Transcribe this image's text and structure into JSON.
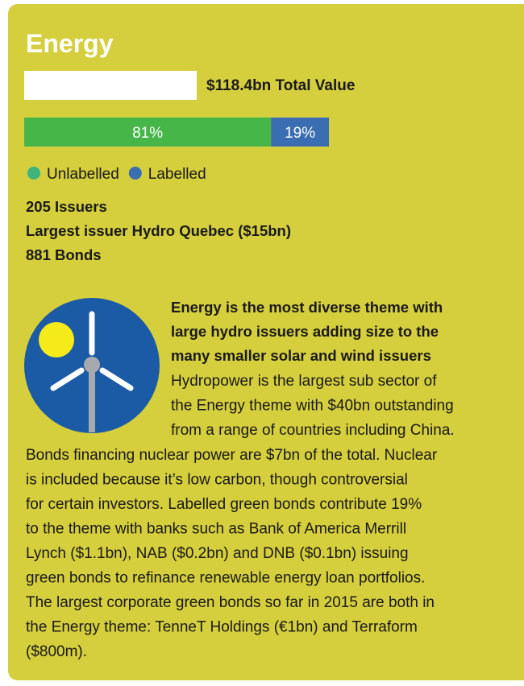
{
  "title": "Energy",
  "total_value": "$118.4bn Total Value",
  "chart_data": {
    "type": "bar",
    "orientation": "horizontal",
    "stacked": true,
    "xlim": [
      0,
      100
    ],
    "series": [
      {
        "name": "Unlabelled",
        "color": "#46b649",
        "legend_color": "#3fb47c",
        "values": [
          81
        ],
        "value_labels": [
          "81%"
        ]
      },
      {
        "name": "Labelled",
        "color": "#3a6db1",
        "legend_color": "#3a6db1",
        "values": [
          19
        ],
        "value_labels": [
          "19%"
        ]
      }
    ]
  },
  "stats": [
    "205 Issuers",
    "Largest issuer Hydro Quebec ($15bn)",
    "881 Bonds"
  ],
  "highlight": {
    "heading_lines": [
      "Energy is the most diverse theme with",
      "large hydro issuers adding size to the",
      "many smaller solar and wind issuers"
    ],
    "side_lines": [
      "Hydropower is the largest sub sector of",
      "the Energy theme with  $40bn outstanding",
      "from a range of countries including China."
    ],
    "body_lines": [
      "Bonds financing nuclear power are $7bn of the total. Nuclear",
      "is included because it’s low carbon, though controversial",
      "for certain investors. Labelled green bonds contribute 19%",
      "to the theme with banks such as Bank of America Merrill",
      "Lynch ($1.1bn), NAB ($0.2bn) and DNB ($0.1bn) issuing",
      "green bonds to refinance renewable energy loan portfolios.",
      "The largest corporate green bonds so far in 2015 are both in",
      "the Energy theme: TenneT Holdings (€1bn) and Terraform",
      "($800m)."
    ]
  }
}
